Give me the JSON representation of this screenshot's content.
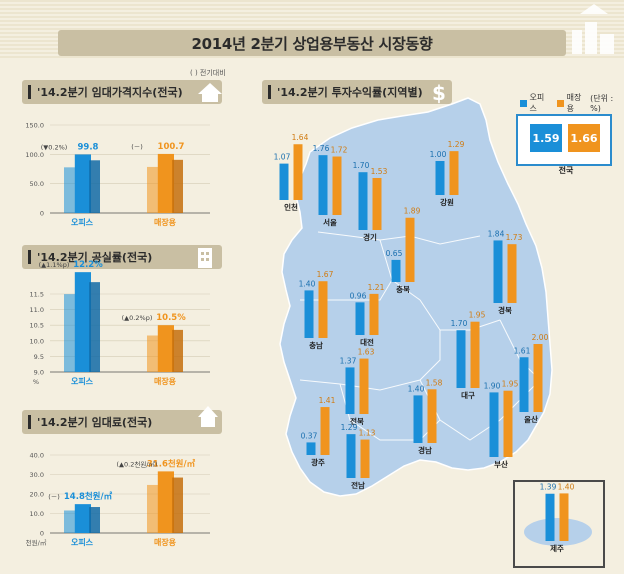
{
  "title": "2014년 2분기 상업용부동산 시장동향",
  "colors": {
    "office": "#1a8fd8",
    "retail": "#f0941e",
    "panel": "#c9bfa3",
    "map": "#b6d0ea"
  },
  "legend": {
    "office": "오피스",
    "retail": "매장용",
    "unit": "(단위 : %)"
  },
  "rent_index": {
    "heading": "'14.2분기 임대가격지수(전국)",
    "note": "(   ) 전기대비",
    "chart_data": {
      "type": "bar",
      "categories": [
        "오피스",
        "매장용"
      ],
      "values": [
        99.8,
        100.7
      ],
      "value_labels": [
        "99.8",
        "100.7"
      ],
      "changes": [
        "(▼0.2%)",
        "(－)"
      ],
      "yticks": [
        "150.0",
        "100.0",
        "50.0",
        "0"
      ],
      "ylim": [
        0,
        150
      ]
    }
  },
  "vacancy": {
    "heading": "'14.2분기 공실률(전국)",
    "chart_data": {
      "type": "bar",
      "categories": [
        "오피스",
        "매장용"
      ],
      "values": [
        12.2,
        10.5
      ],
      "value_labels": [
        "12.2%",
        "10.5%"
      ],
      "changes": [
        "(▲1.1%p)",
        "(▲0.2%p)"
      ],
      "yticks": [
        "11.5",
        "11.0",
        "10.5",
        "10.0",
        "9.5",
        "9.0"
      ],
      "ylabel": "%",
      "ylim": [
        9.0,
        11.5
      ]
    }
  },
  "rent": {
    "heading": "'14.2분기 임대료(전국)",
    "chart_data": {
      "type": "bar",
      "categories": [
        "오피스",
        "매장용"
      ],
      "values": [
        14.8,
        31.6
      ],
      "value_labels": [
        "14.8천원/㎡",
        "31.6천원/㎡"
      ],
      "changes": [
        "(－)",
        "(▲0.2천원/㎡)"
      ],
      "yticks": [
        "40.0",
        "30.0",
        "20.0",
        "10.0",
        "0"
      ],
      "ylabel": "천원/㎡",
      "ylim": [
        0,
        40
      ]
    }
  },
  "yield_map": {
    "heading": "'14.2분기 투자수익률(지역별)",
    "national": {
      "label": "전국",
      "office": 1.59,
      "retail": 1.66
    },
    "chart_data": {
      "type": "bar",
      "series_names": [
        "오피스",
        "매장용"
      ],
      "regions": [
        {
          "name": "인천",
          "office": 1.07,
          "retail": 1.64
        },
        {
          "name": "서울",
          "office": 1.76,
          "retail": 1.72
        },
        {
          "name": "경기",
          "office": 1.7,
          "retail": 1.53
        },
        {
          "name": "강원",
          "office": 1.0,
          "retail": 1.29
        },
        {
          "name": "충북",
          "office": 0.65,
          "retail": 1.89
        },
        {
          "name": "경북",
          "office": 1.84,
          "retail": 1.73
        },
        {
          "name": "충남",
          "office": 1.4,
          "retail": 1.67
        },
        {
          "name": "대전",
          "office": 0.96,
          "retail": 1.21
        },
        {
          "name": "대구",
          "office": 1.7,
          "retail": 1.95
        },
        {
          "name": "울산",
          "office": 1.61,
          "retail": 2.0
        },
        {
          "name": "전북",
          "office": 1.37,
          "retail": 1.63
        },
        {
          "name": "경남",
          "office": 1.4,
          "retail": 1.58
        },
        {
          "name": "부산",
          "office": 1.9,
          "retail": 1.95
        },
        {
          "name": "광주",
          "office": 0.37,
          "retail": 1.41
        },
        {
          "name": "전남",
          "office": 1.29,
          "retail": 1.13
        },
        {
          "name": "제주",
          "office": 1.39,
          "retail": 1.4
        }
      ]
    }
  }
}
